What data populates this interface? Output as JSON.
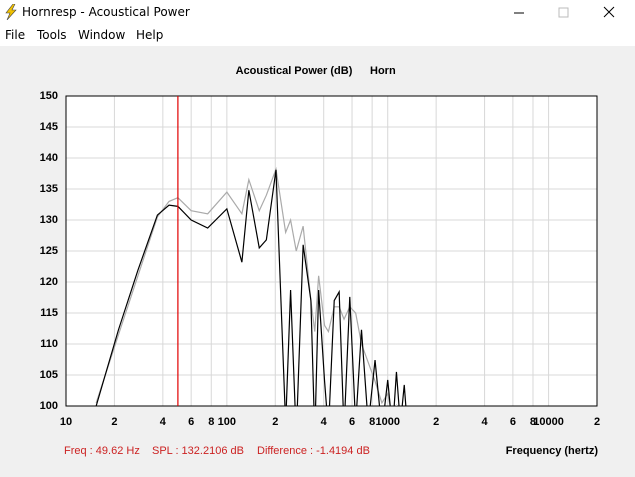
{
  "window": {
    "title": "Hornresp - Acoustical Power"
  },
  "menu": [
    "File",
    "Tools",
    "Window",
    "Help"
  ],
  "chart_data": {
    "type": "line",
    "title": "Acoustical Power (dB)",
    "subtitle": "Horn",
    "x_label": "Frequency (hertz)",
    "x_log": true,
    "grid": true,
    "xlim": [
      10,
      20000
    ],
    "ylim": [
      100,
      150
    ],
    "xticks": [
      10,
      {
        "value": 20,
        "label": "2"
      },
      {
        "value": 40,
        "label": "4"
      },
      {
        "value": 60,
        "label": "6"
      },
      {
        "value": 80,
        "label": "8"
      },
      100,
      {
        "value": 200,
        "label": "2"
      },
      {
        "value": 400,
        "label": "4"
      },
      {
        "value": 600,
        "label": "6"
      },
      {
        "value": 800,
        "label": "8"
      },
      1000,
      {
        "value": 2000,
        "label": "2"
      },
      {
        "value": 4000,
        "label": "4"
      },
      {
        "value": 6000,
        "label": "6"
      },
      {
        "value": 8000,
        "label": "8"
      },
      10000,
      {
        "value": 20000,
        "label": "2"
      }
    ],
    "yticks": [
      100,
      105,
      110,
      115,
      120,
      125,
      130,
      135,
      140,
      145,
      150
    ],
    "x": [
      15.4,
      21.2,
      28,
      37,
      43.7,
      49.62,
      60,
      76,
      100,
      124,
      137,
      159,
      176,
      202,
      232,
      249,
      270,
      298,
      333,
      352,
      372,
      405,
      428,
      465,
      499,
      535,
      581,
      632,
      687,
      757,
      834,
      920,
      1000,
      1072,
      1133,
      1199,
      1267,
      1340
    ],
    "series": [
      {
        "color": "#aaaaaa",
        "values": [
          100.5,
          111.5,
          121,
          130.5,
          133,
          133.6,
          131.5,
          131,
          134.5,
          131,
          136.5,
          131.5,
          134,
          138.2,
          128,
          130,
          125,
          129,
          117,
          112,
          121,
          113,
          112,
          116,
          116,
          114,
          116,
          115,
          110,
          107,
          104,
          100.5,
          102,
          98,
          100,
          97,
          98,
          95
        ]
      },
      {
        "color": "#000000",
        "values": [
          100,
          112.3,
          121.9,
          130.8,
          132.4,
          132.2,
          130,
          128.7,
          131.8,
          123.2,
          134.8,
          125.5,
          126.8,
          138.1,
          97,
          118.7,
          95,
          126,
          117,
          95,
          118.7,
          104,
          96,
          117,
          118.4,
          96,
          117.6,
          97,
          112.3,
          97,
          107.4,
          96,
          104.2,
          96,
          105.5,
          97,
          103.4,
          95
        ]
      }
    ],
    "cursor_x": 49.62,
    "cursor_color": "#e00000",
    "readout": [
      "Freq : 49.62 Hz",
      "SPL : 132.2106 dB",
      "Difference : -1.4194 dB"
    ],
    "readout_color": "#cc2222"
  }
}
